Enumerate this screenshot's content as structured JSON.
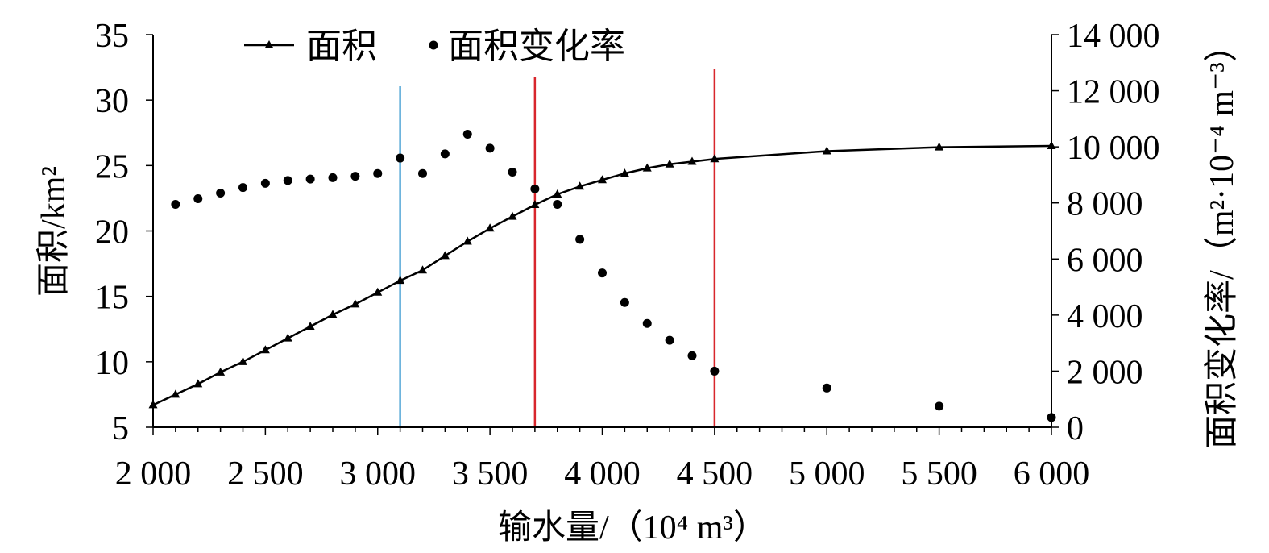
{
  "chart_data": {
    "type": "line",
    "title": "",
    "xlabel": "输水量/（10⁴ m³）",
    "ylabel_left": "面积/km²",
    "ylabel_right": "面积变化率/（m²·10⁻⁴ m⁻³）",
    "xlim": [
      2000,
      6000
    ],
    "ylim_left": [
      5,
      35
    ],
    "ylim_right": [
      0,
      14000
    ],
    "x_ticks": [
      "2 000",
      "2 500",
      "3 000",
      "3 500",
      "4 000",
      "4 500",
      "5 000",
      "5 500",
      "6 000"
    ],
    "y_left_ticks": [
      "5",
      "10",
      "15",
      "20",
      "25",
      "30",
      "35"
    ],
    "y_right_ticks": [
      "0",
      "2 000",
      "4 000",
      "6 000",
      "8 000",
      "10 000",
      "12 000",
      "14 000"
    ],
    "grid": false,
    "legend_position": "top-left",
    "series": [
      {
        "name": "面积",
        "axis": "left",
        "marker": "triangle",
        "line": true,
        "x": [
          2000,
          2100,
          2200,
          2300,
          2400,
          2500,
          2600,
          2700,
          2800,
          2900,
          3000,
          3100,
          3200,
          3300,
          3400,
          3500,
          3600,
          3700,
          3800,
          3900,
          4000,
          4100,
          4200,
          4300,
          4400,
          4500,
          5000,
          5500,
          6000
        ],
        "values": [
          6.7,
          7.5,
          8.3,
          9.2,
          10.0,
          10.9,
          11.8,
          12.7,
          13.6,
          14.4,
          15.3,
          16.2,
          17.0,
          18.1,
          19.2,
          20.2,
          21.1,
          22.0,
          22.8,
          23.4,
          23.9,
          24.4,
          24.8,
          25.1,
          25.3,
          25.5,
          26.1,
          26.4,
          26.5
        ]
      },
      {
        "name": "面积变化率",
        "axis": "right",
        "marker": "circle",
        "line": false,
        "x": [
          2100,
          2200,
          2300,
          2400,
          2500,
          2600,
          2700,
          2800,
          2900,
          3000,
          3100,
          3200,
          3300,
          3400,
          3500,
          3600,
          3700,
          3800,
          3900,
          4000,
          4100,
          4200,
          4300,
          4400,
          4500,
          5000,
          5500,
          6000
        ],
        "values": [
          7950,
          8150,
          8350,
          8550,
          8700,
          8800,
          8850,
          8900,
          8950,
          9050,
          9600,
          9050,
          9750,
          10450,
          9950,
          9100,
          8500,
          7950,
          6700,
          5500,
          4450,
          3700,
          3100,
          2550,
          2000,
          1400,
          750,
          350
        ]
      }
    ],
    "reference_lines": [
      {
        "x": 3100,
        "color": "#5aaad8"
      },
      {
        "x": 3700,
        "color": "#d8262c"
      },
      {
        "x": 4500,
        "color": "#d8262c"
      }
    ],
    "colors": {
      "series": "#000000",
      "blue_line": "#5aaad8",
      "red_line": "#d8262c"
    }
  }
}
